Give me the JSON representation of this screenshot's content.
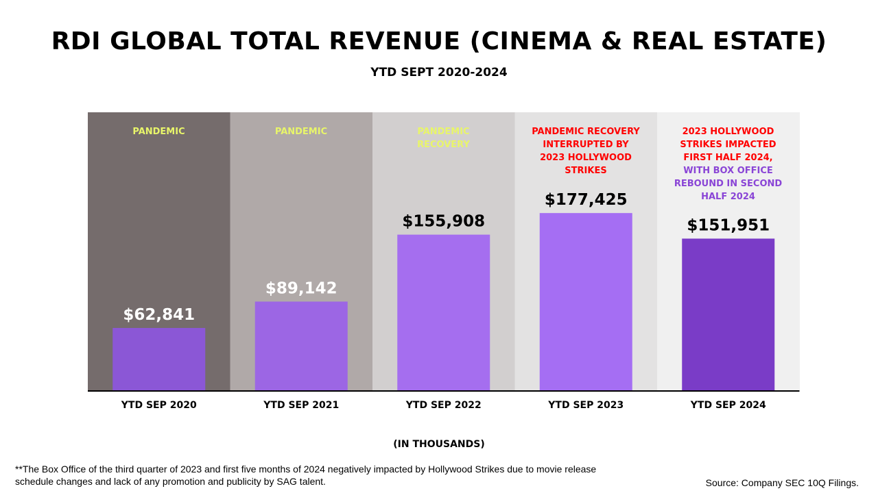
{
  "colors": {
    "bands": [
      "#756c6c",
      "#b0a9a8",
      "#d2cfcf",
      "#e3e2e2",
      "#f0f0f0"
    ],
    "bars": [
      "#8b57d6",
      "#9c66e4",
      "#a56eef",
      "#a56ef3",
      "#7a3cc7"
    ],
    "axis": "#000000",
    "value_light": "#ffffff",
    "value_dark": "#000000",
    "yellow": "#e8f56a",
    "red": "#ff0000",
    "purple": "#8a45d6"
  },
  "chart_data": {
    "type": "bar",
    "title": "RDI GLOBAL TOTAL REVENUE (CINEMA & REAL ESTATE)",
    "subtitle": "YTD SEPT 2020-2024",
    "categories": [
      "YTD SEP 2020",
      "YTD SEP 2021",
      "YTD SEP 2022",
      "YTD SEP 2023",
      "YTD SEP 2024"
    ],
    "values": [
      62841,
      89142,
      155908,
      177425,
      151951
    ],
    "value_labels": [
      "$62,841",
      "$89,142",
      "$155,908",
      "$177,425",
      "$151,951"
    ],
    "ylim": [
      0,
      240000
    ],
    "ylabel": "",
    "xlabel": "(IN THOUSANDS)",
    "grid": false,
    "annotations": [
      {
        "lines": [
          {
            "text": "PANDEMIC",
            "color": "yellow"
          }
        ]
      },
      {
        "lines": [
          {
            "text": "PANDEMIC",
            "color": "yellow"
          }
        ]
      },
      {
        "lines": [
          {
            "text": "PANDEMIC",
            "color": "yellow"
          },
          {
            "text": "RECOVERY",
            "color": "yellow"
          }
        ]
      },
      {
        "lines": [
          {
            "text": "PANDEMIC RECOVERY",
            "color": "red"
          },
          {
            "text": "INTERRUPTED BY",
            "color": "red"
          },
          {
            "text": "2023 HOLLYWOOD",
            "color": "red"
          },
          {
            "text": "STRIKES",
            "color": "red"
          }
        ]
      },
      {
        "lines": [
          {
            "text": "2023 HOLLYWOOD",
            "color": "red"
          },
          {
            "text": "STRIKES IMPACTED",
            "color": "red"
          },
          {
            "text": "FIRST HALF 2024,",
            "color": "red"
          },
          {
            "text": "WITH BOX OFFICE",
            "color": "purple"
          },
          {
            "text": "REBOUND IN SECOND",
            "color": "purple"
          },
          {
            "text": "HALF 2024",
            "color": "purple"
          }
        ]
      }
    ]
  },
  "footnote": "**The Box Office of the third quarter of 2023 and first five months of 2024 negatively impacted by Hollywood Strikes due to movie release schedule changes and lack of any promotion and publicity by SAG talent.",
  "source": "Source: Company SEC 10Q Filings."
}
